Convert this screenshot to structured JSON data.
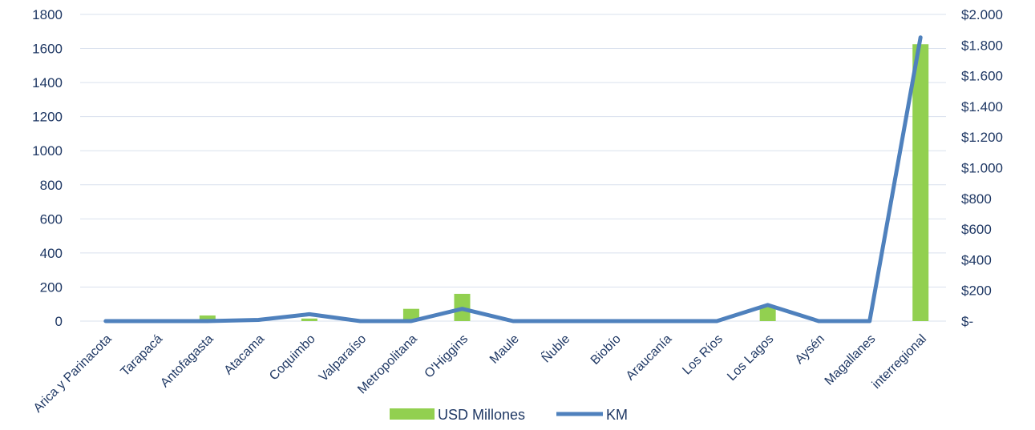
{
  "chart_data": {
    "type": "bar",
    "categories": [
      "Arica y Parinacota",
      "Tarapacá",
      "Antofagasta",
      "Atacama",
      "Coquimbo",
      "Valparaíso",
      "Metropolitana",
      "O'Higgins",
      "Maule",
      "Ñuble",
      "Biobío",
      "Araucanía",
      "Los Ríos",
      "Los Lagos",
      "Aysén",
      "Magallanes",
      "interregional"
    ],
    "series": [
      {
        "name": "USD Millones",
        "type": "bar",
        "axis": "left",
        "color": "#92d050",
        "values": [
          0,
          0,
          33,
          0,
          15,
          0,
          72,
          160,
          0,
          0,
          0,
          0,
          0,
          90,
          0,
          0,
          1625
        ]
      },
      {
        "name": "KM",
        "type": "line",
        "axis": "right",
        "color": "#4f81bd",
        "values": [
          0,
          0,
          0,
          8,
          45,
          0,
          0,
          80,
          0,
          0,
          0,
          0,
          0,
          105,
          0,
          0,
          1850
        ]
      }
    ],
    "y_left": {
      "ylim": [
        0,
        1800
      ],
      "ticks": [
        "0",
        "200",
        "400",
        "600",
        "800",
        "1000",
        "1200",
        "1400",
        "1600",
        "1800"
      ]
    },
    "y_right": {
      "ylim": [
        0,
        2000
      ],
      "ticks": [
        "$-",
        "$200",
        "$400",
        "$600",
        "$800",
        "$1.000",
        "$1.200",
        "$1.400",
        "$1.600",
        "$1.800",
        "$2.000"
      ]
    },
    "grid": true,
    "legend_position": "bottom"
  }
}
